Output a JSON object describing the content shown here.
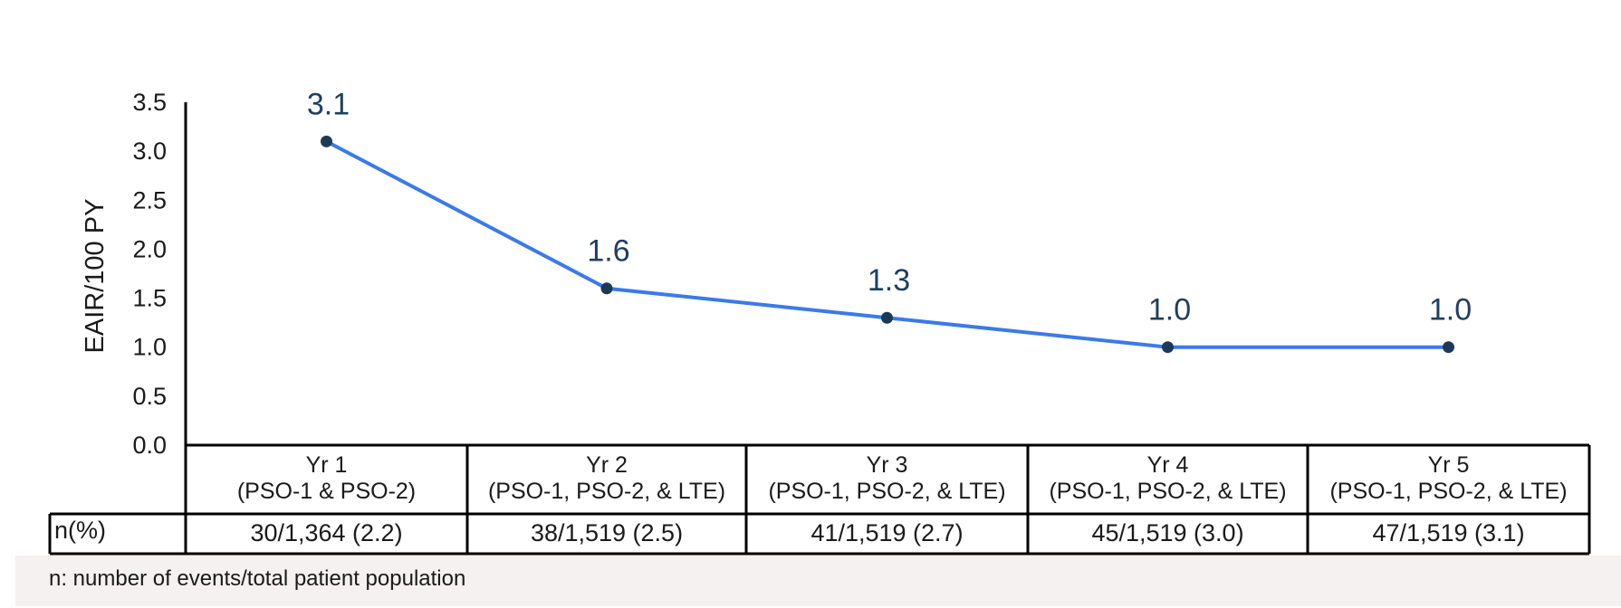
{
  "chart_data": {
    "type": "line",
    "ylabel": "EAIR/100 PY",
    "ylim": [
      0,
      3.5
    ],
    "yticks": [
      "0.0",
      "0.5",
      "1.0",
      "1.5",
      "2.0",
      "2.5",
      "3.0",
      "3.5"
    ],
    "categories": [
      {
        "line1": "Yr 1",
        "line2": "(PSO-1 & PSO-2)"
      },
      {
        "line1": "Yr 2",
        "line2": "(PSO-1, PSO-2, & LTE)"
      },
      {
        "line1": "Yr 3",
        "line2": "(PSO-1, PSO-2, & LTE)"
      },
      {
        "line1": "Yr 4",
        "line2": "(PSO-1, PSO-2, & LTE)"
      },
      {
        "line1": "Yr 5",
        "line2": "(PSO-1, PSO-2, & LTE)"
      }
    ],
    "values": [
      3.1,
      1.6,
      1.3,
      1.0,
      1.0
    ],
    "data_labels": [
      "3.1",
      "1.6",
      "1.3",
      "1.0",
      "1.0"
    ],
    "grid": false,
    "colors": {
      "line": "#3b7ae8",
      "marker": "#1b3a57",
      "label": "#1f3f5e",
      "axis": "#000000"
    }
  },
  "table": {
    "row_header": "n(%)",
    "cells": [
      "30/1,364 (2.2)",
      "38/1,519 (2.5)",
      "41/1,519 (2.7)",
      "45/1,519 (3.0)",
      "47/1,519 (3.1)"
    ]
  },
  "footnote": "n: number of events/total patient population"
}
